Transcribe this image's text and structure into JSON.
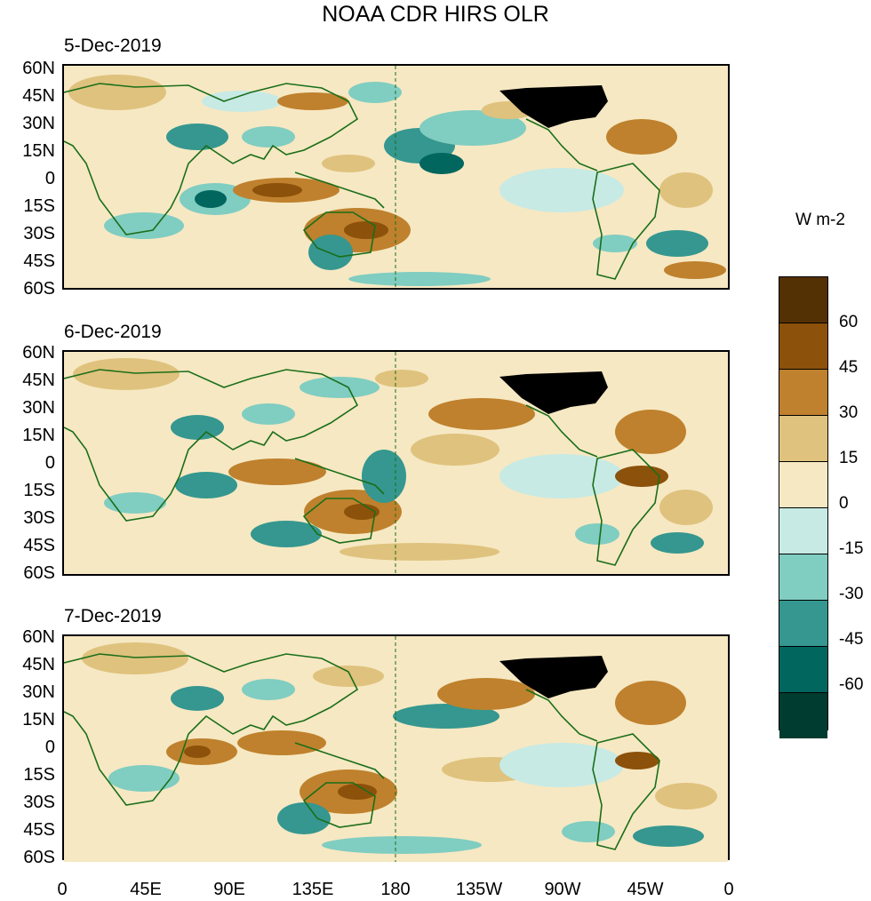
{
  "title": "NOAA CDR HIRS OLR",
  "units": "W m-2",
  "panels": [
    {
      "date": "5-Dec-2019"
    },
    {
      "date": "6-Dec-2019"
    },
    {
      "date": "7-Dec-2019"
    }
  ],
  "lat_labels": [
    "60N",
    "45N",
    "30N",
    "15N",
    "0",
    "15S",
    "30S",
    "45S",
    "60S"
  ],
  "lon_labels": [
    "0",
    "45E",
    "90E",
    "135E",
    "180",
    "135W",
    "90W",
    "45W",
    "0"
  ],
  "colorbar_labels": [
    "60",
    "45",
    "30",
    "15",
    "0",
    "-15",
    "-30",
    "-45",
    "-60"
  ],
  "colors": {
    "c_pos75": "#543005",
    "c_pos60": "#8c510a",
    "c_pos45": "#bf812d",
    "c_pos30": "#dfc27d",
    "c_pos15": "#f6e8c3",
    "c_neg0": "#c7eae5",
    "c_neg15": "#80cdc1",
    "c_neg30": "#35978f",
    "c_neg45": "#01665e",
    "c_neg60": "#003c30",
    "coast": "#1a6e1a"
  }
}
